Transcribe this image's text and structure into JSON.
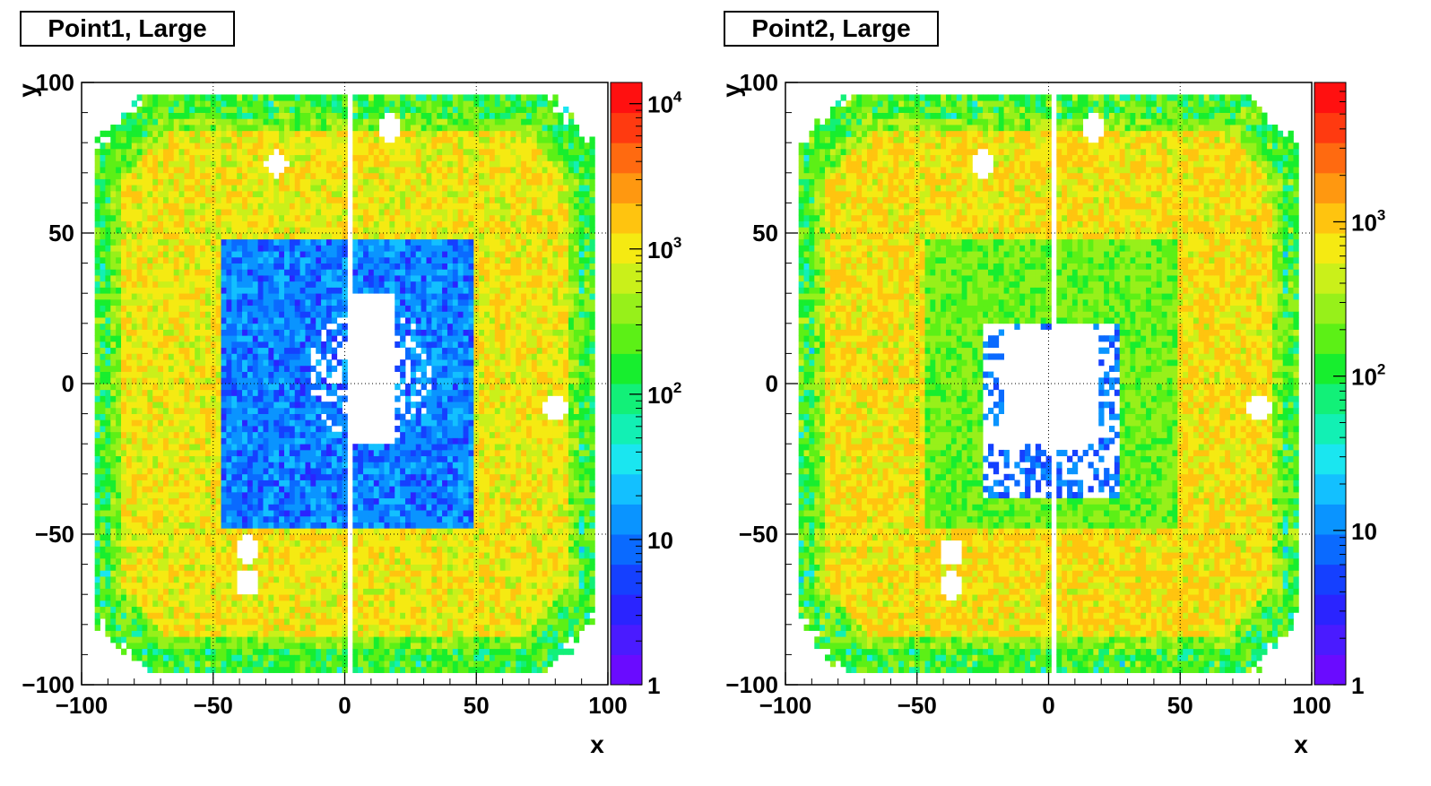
{
  "chart_data": [
    {
      "type": "heatmap",
      "title": "Point1, Large",
      "xlabel": "x",
      "ylabel": "y",
      "xlim": [
        -100,
        100
      ],
      "ylim": [
        -100,
        100
      ],
      "x_ticks": [
        "−100",
        "−50",
        "0",
        "50",
        "100"
      ],
      "y_ticks": [
        "−100",
        "−50",
        "0",
        "50",
        "100"
      ],
      "color_scale": "log",
      "color_range": [
        1,
        14000
      ],
      "colorbar_ticks": [
        {
          "value": 1,
          "label": "1"
        },
        {
          "value": 10,
          "label": "10"
        },
        {
          "value": 100,
          "label": "10",
          "exp": "2"
        },
        {
          "value": 1000,
          "label": "10",
          "exp": "3"
        },
        {
          "value": 10000,
          "label": "10",
          "exp": "4"
        }
      ],
      "grid": true,
      "regions": [
        {
          "kind": "outer_wall",
          "typical_counts": 900
        },
        {
          "kind": "inner_frame",
          "x": [
            -47,
            50
          ],
          "y": [
            -48,
            48
          ],
          "typical_counts": 8
        },
        {
          "kind": "central_hole",
          "x": [
            0,
            20
          ],
          "y": [
            -20,
            30
          ],
          "typical_counts": 0
        },
        {
          "kind": "hole",
          "x": -26,
          "y": 73
        },
        {
          "kind": "hole",
          "x": 17,
          "y": 85
        },
        {
          "kind": "hole",
          "x": 80,
          "y": -8
        },
        {
          "kind": "hole",
          "x": -37,
          "y": -55
        },
        {
          "kind": "hole",
          "x": -37,
          "y": -66
        }
      ]
    },
    {
      "type": "heatmap",
      "title": "Point2, Large",
      "xlabel": "x",
      "ylabel": "y",
      "xlim": [
        -100,
        100
      ],
      "ylim": [
        -100,
        100
      ],
      "x_ticks": [
        "−100",
        "−50",
        "0",
        "50",
        "100"
      ],
      "y_ticks": [
        "−100",
        "−50",
        "0",
        "50",
        "100"
      ],
      "color_scale": "log",
      "color_range": [
        1,
        8000
      ],
      "colorbar_ticks": [
        {
          "value": 1,
          "label": "1"
        },
        {
          "value": 10,
          "label": "10"
        },
        {
          "value": 100,
          "label": "10",
          "exp": "2"
        },
        {
          "value": 1000,
          "label": "10",
          "exp": "3"
        }
      ],
      "grid": true,
      "regions": [
        {
          "kind": "outer_wall",
          "typical_counts": 700
        },
        {
          "kind": "inner_frame",
          "x": [
            -47,
            50
          ],
          "y": [
            -48,
            48
          ],
          "typical_counts": 150
        },
        {
          "kind": "central_hole",
          "x": [
            -17,
            20
          ],
          "y": [
            -20,
            18
          ],
          "typical_counts": 0
        },
        {
          "kind": "hole",
          "x": -25,
          "y": 73
        },
        {
          "kind": "hole",
          "x": 17,
          "y": 85
        },
        {
          "kind": "hole",
          "x": 80,
          "y": -8
        },
        {
          "kind": "hole",
          "x": -37,
          "y": -56
        },
        {
          "kind": "hole",
          "x": -37,
          "y": -67
        }
      ]
    }
  ]
}
